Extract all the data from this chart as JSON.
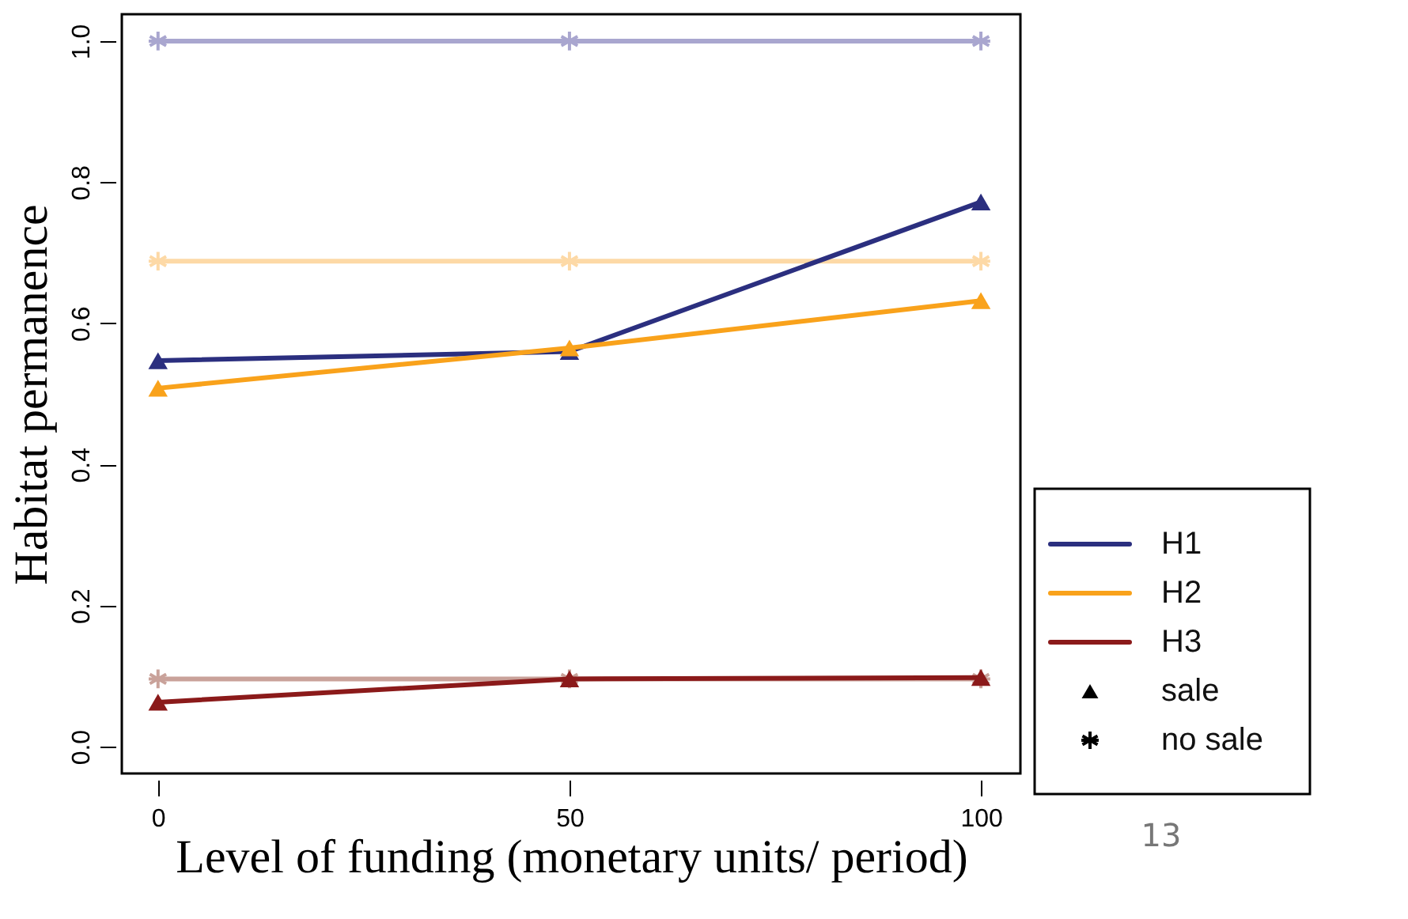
{
  "chart_data": {
    "type": "line",
    "xlabel": "Level of  funding (monetary units/ period)",
    "ylabel": "Habitat permanence",
    "x": [
      0,
      50,
      100
    ],
    "series": [
      {
        "color": "#a9a6cf",
        "marker": "cross",
        "values": [
          1.0,
          1.0,
          1.0
        ]
      },
      {
        "color": "#fdd9a6",
        "marker": "cross",
        "values": [
          0.688,
          0.688,
          0.688
        ]
      },
      {
        "color": "#c9a29a",
        "marker": "cross",
        "values": [
          0.096,
          0.096,
          0.096
        ]
      },
      {
        "name": "H1",
        "color": "#2b2f7f",
        "marker": "triangle",
        "values": [
          0.547,
          0.56,
          0.772
        ]
      },
      {
        "name": "H2",
        "color": "#f9a21b",
        "marker": "triangle",
        "values": [
          0.508,
          0.565,
          0.632
        ]
      },
      {
        "name": "H3",
        "color": "#8b1a1a",
        "marker": "triangle",
        "values": [
          0.063,
          0.096,
          0.098
        ]
      }
    ],
    "xlim": [
      -4.4,
      104.8
    ],
    "xticks": [
      0,
      50,
      100
    ],
    "ylim": [
      -0.038,
      1.038
    ],
    "yticks": [
      {
        "value": 0,
        "label": "0.0"
      },
      {
        "value": 0.2,
        "label": "0.2"
      },
      {
        "value": 0.4,
        "label": "0.4"
      },
      {
        "value": 0.6,
        "label": "0.6"
      },
      {
        "value": 0.8,
        "label": "0.8"
      },
      {
        "value": 1.0,
        "label": "1.0"
      }
    ],
    "grid": false,
    "legend": "bottom right",
    "line_style": "solid",
    "annotations": [
      "sale",
      "no sale",
      "13"
    ]
  }
}
